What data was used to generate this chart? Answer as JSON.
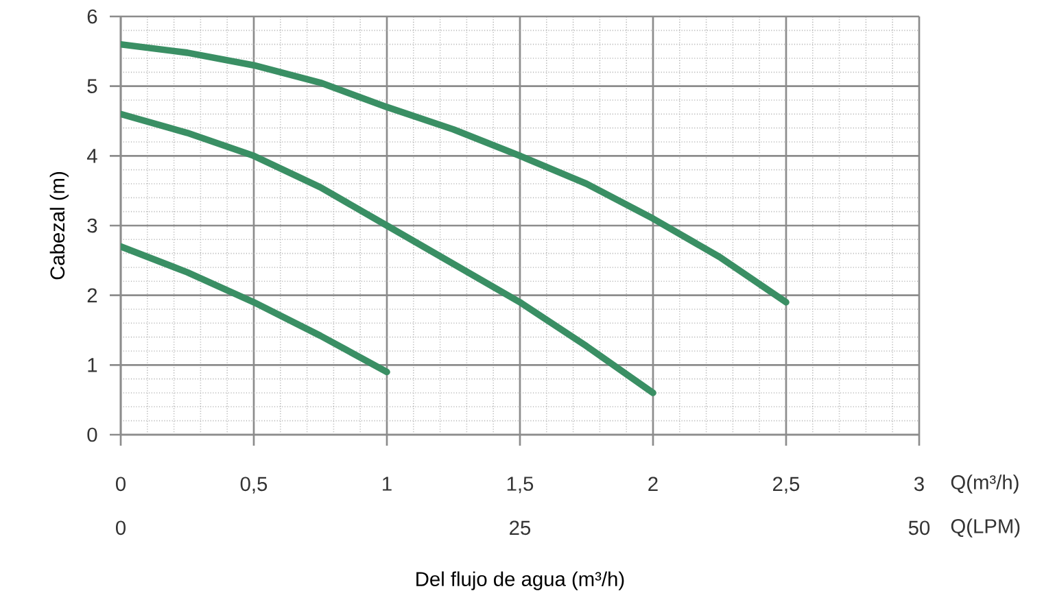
{
  "chart_data": {
    "type": "line",
    "xlabel": "Del flujo de agua (m³/h)",
    "ylabel": "Cabezal (m)",
    "annotations": [
      "Q(m³/h)",
      "Q(LPM)"
    ],
    "xlim": [
      0,
      3
    ],
    "ylim": [
      0,
      6
    ],
    "xticks": [
      0,
      {
        "value": 0.5,
        "label": "0,5"
      },
      1,
      {
        "value": 1.5,
        "label": "1,5"
      },
      2,
      {
        "value": 2.5,
        "label": "2,5"
      },
      3
    ],
    "yticks": [
      0,
      1,
      2,
      3,
      4,
      5,
      6
    ],
    "x2lim": [
      0,
      50
    ],
    "x2ticks": [
      0,
      25,
      50
    ],
    "grid": true,
    "marker": "none",
    "line_style": "solid",
    "series": [
      {
        "color": "#3a8f64",
        "x": [
          0,
          0.25,
          0.5,
          0.75,
          1,
          1.25,
          1.5,
          1.75,
          2,
          2.25,
          2.5
        ],
        "values": [
          5.6,
          5.48,
          5.3,
          5.05,
          4.7,
          4.38,
          4.0,
          3.6,
          3.1,
          2.55,
          1.9
        ]
      },
      {
        "color": "#3a8f64",
        "x": [
          0,
          0.25,
          0.5,
          0.75,
          1,
          1.25,
          1.5,
          1.75,
          2
        ],
        "values": [
          4.6,
          4.33,
          4.0,
          3.55,
          3.0,
          2.45,
          1.9,
          1.27,
          0.6
        ]
      },
      {
        "color": "#3a8f64",
        "x": [
          0,
          0.25,
          0.5,
          0.75,
          1
        ],
        "values": [
          2.7,
          2.33,
          1.9,
          1.42,
          0.9
        ]
      }
    ]
  }
}
